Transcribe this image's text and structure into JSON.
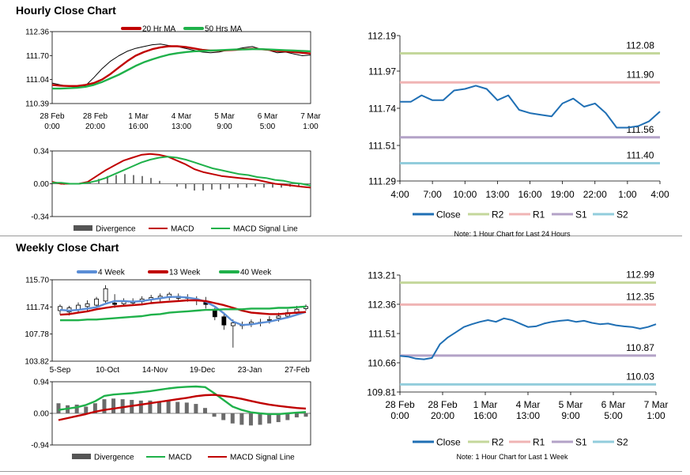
{
  "hourly": {
    "title": "Hourly Close Chart",
    "price_panel": {
      "type": "line",
      "legend": [
        {
          "name": "20 Hr MA",
          "color": "#c00000"
        },
        {
          "name": "50 Hrs MA",
          "color": "#1fb14a"
        }
      ],
      "y_ticks": [
        "112.36",
        "111.70",
        "111.04",
        "110.39"
      ],
      "ylim": [
        110.39,
        112.36
      ],
      "x_ticks": [
        [
          "28 Feb",
          "0:00"
        ],
        [
          "28 Feb",
          "20:00"
        ],
        [
          "1 Mar",
          "16:00"
        ],
        [
          "4 Mar",
          "13:00"
        ],
        [
          "5 Mar",
          "9:00"
        ],
        [
          "6 Mar",
          "5:00"
        ],
        [
          "7 Mar",
          "1:00"
        ]
      ],
      "series": [
        {
          "name": "Price",
          "color": "#000000",
          "values": [
            110.95,
            110.9,
            110.86,
            110.84,
            110.88,
            111.1,
            111.35,
            111.55,
            111.7,
            111.82,
            111.9,
            111.95,
            112.0,
            112.02,
            111.98,
            111.95,
            111.9,
            111.85,
            111.8,
            111.78,
            111.8,
            111.85,
            111.88,
            111.92,
            111.95,
            111.88,
            111.85,
            111.78,
            111.8,
            111.75,
            111.7,
            111.72
          ]
        },
        {
          "name": "20 Hr MA",
          "color": "#c00000",
          "values": [
            110.9,
            110.88,
            110.87,
            110.87,
            110.9,
            110.95,
            111.05,
            111.2,
            111.38,
            111.55,
            111.7,
            111.8,
            111.88,
            111.93,
            111.96,
            111.96,
            111.94,
            111.9,
            111.86,
            111.84,
            111.84,
            111.85,
            111.86,
            111.88,
            111.89,
            111.88,
            111.86,
            111.83,
            111.82,
            111.8,
            111.78,
            111.76
          ]
        },
        {
          "name": "50 Hrs MA",
          "color": "#1fb14a",
          "values": [
            110.8,
            110.8,
            110.81,
            110.82,
            110.85,
            110.9,
            110.98,
            111.08,
            111.18,
            111.3,
            111.42,
            111.52,
            111.6,
            111.67,
            111.73,
            111.77,
            111.8,
            111.82,
            111.83,
            111.84,
            111.85,
            111.86,
            111.87,
            111.87,
            111.88,
            111.88,
            111.87,
            111.86,
            111.85,
            111.84,
            111.83,
            111.82
          ]
        }
      ]
    },
    "macd_panel": {
      "type": "line",
      "y_ticks": [
        "0.34",
        "0.00",
        "-0.34"
      ],
      "ylim": [
        -0.34,
        0.34
      ],
      "legend": [
        {
          "name": "Divergence",
          "color": "#555555"
        },
        {
          "name": "MACD",
          "color": "#c00000"
        },
        {
          "name": "MACD Signal Line",
          "color": "#1fb14a"
        }
      ],
      "series": [
        {
          "name": "MACD",
          "color": "#c00000",
          "values": [
            0.02,
            0.0,
            0.0,
            0.0,
            0.02,
            0.08,
            0.14,
            0.19,
            0.24,
            0.27,
            0.3,
            0.31,
            0.3,
            0.28,
            0.24,
            0.2,
            0.15,
            0.12,
            0.1,
            0.08,
            0.07,
            0.06,
            0.05,
            0.04,
            0.02,
            0.0,
            -0.01,
            -0.02,
            -0.03,
            -0.04
          ]
        },
        {
          "name": "MACD Signal Line",
          "color": "#1fb14a",
          "values": [
            0.01,
            0.01,
            0.0,
            0.0,
            0.01,
            0.03,
            0.06,
            0.1,
            0.14,
            0.18,
            0.22,
            0.25,
            0.27,
            0.28,
            0.27,
            0.25,
            0.22,
            0.19,
            0.16,
            0.14,
            0.12,
            0.1,
            0.09,
            0.07,
            0.06,
            0.04,
            0.03,
            0.01,
            0.0,
            -0.02
          ]
        }
      ],
      "divergence": [
        0.01,
        -0.01,
        0.0,
        0.0,
        0.01,
        0.05,
        0.08,
        0.09,
        0.1,
        0.09,
        0.08,
        0.06,
        0.03,
        0.0,
        -0.03,
        -0.05,
        -0.07,
        -0.07,
        -0.06,
        -0.06,
        -0.05,
        -0.04,
        -0.04,
        -0.03,
        -0.04,
        -0.04,
        -0.04,
        -0.03,
        -0.03,
        -0.02
      ]
    },
    "pivot_panel": {
      "type": "line",
      "y_ticks": [
        "112.19",
        "111.97",
        "111.74",
        "111.51",
        "111.29"
      ],
      "ylim": [
        111.29,
        112.19
      ],
      "x_ticks": [
        "4:00",
        "7:00",
        "10:00",
        "13:00",
        "16:00",
        "19:00",
        "22:00",
        "1:00",
        "4:00"
      ],
      "levels": [
        {
          "name": "R2",
          "value": 112.08,
          "label": "112.08",
          "color": "#c4d79b"
        },
        {
          "name": "R1",
          "value": 111.9,
          "label": "111.90",
          "color": "#f0b4b4"
        },
        {
          "name": "S1",
          "value": 111.56,
          "label": "111.56",
          "color": "#b3a2c7"
        },
        {
          "name": "S2",
          "value": 111.4,
          "label": "111.40",
          "color": "#92cddc"
        }
      ],
      "close": {
        "name": "Close",
        "color": "#1f6fb4",
        "x_hours": [
          0,
          1,
          2,
          3,
          4,
          5,
          6,
          7,
          8,
          9,
          10,
          11,
          12,
          13,
          14,
          15,
          16,
          17,
          18,
          19,
          20,
          21,
          22,
          23,
          24
        ],
        "values": [
          111.78,
          111.78,
          111.82,
          111.79,
          111.79,
          111.85,
          111.86,
          111.88,
          111.86,
          111.79,
          111.82,
          111.73,
          111.71,
          111.7,
          111.69,
          111.77,
          111.8,
          111.75,
          111.77,
          111.71,
          111.62,
          111.62,
          111.63,
          111.66,
          111.72
        ]
      },
      "legend": [
        "Close",
        "R2",
        "R1",
        "S1",
        "S2"
      ],
      "note": "Note: 1 Hour Chart for Last 24 Hours"
    }
  },
  "weekly": {
    "title": "Weekly Close Chart",
    "price_panel": {
      "type": "line",
      "legend": [
        {
          "name": "4 Week",
          "color": "#5b8ed6"
        },
        {
          "name": "13 Week",
          "color": "#c00000"
        },
        {
          "name": "40 Week",
          "color": "#1fb14a"
        }
      ],
      "y_ticks": [
        "115.70",
        "111.74",
        "107.78",
        "103.82"
      ],
      "ylim": [
        103.82,
        115.7
      ],
      "x_ticks": [
        "5-Sep",
        "10-Oct",
        "14-Nov",
        "19-Dec",
        "23-Jan",
        "27-Feb"
      ],
      "candles": [
        [
          111.2,
          111.8,
          110.6,
          112.1
        ],
        [
          111.0,
          111.6,
          110.5,
          111.9
        ],
        [
          111.3,
          112.0,
          110.9,
          112.4
        ],
        [
          111.8,
          112.2,
          111.1,
          112.7
        ],
        [
          112.0,
          112.9,
          111.6,
          113.2
        ],
        [
          112.6,
          114.4,
          112.3,
          114.9
        ],
        [
          112.3,
          112.1,
          111.6,
          113.6
        ],
        [
          112.2,
          112.5,
          111.9,
          113.0
        ],
        [
          112.3,
          112.6,
          111.9,
          113.0
        ],
        [
          112.5,
          112.9,
          112.0,
          113.3
        ],
        [
          112.8,
          113.1,
          112.2,
          113.5
        ],
        [
          113.0,
          113.3,
          112.5,
          113.7
        ],
        [
          113.1,
          113.6,
          112.7,
          113.9
        ],
        [
          113.0,
          113.3,
          112.6,
          113.7
        ],
        [
          113.1,
          113.0,
          112.5,
          113.6
        ],
        [
          112.9,
          112.7,
          112.0,
          113.3
        ],
        [
          112.4,
          112.1,
          111.5,
          113.2
        ],
        [
          111.4,
          110.3,
          109.8,
          111.6
        ],
        [
          110.3,
          109.1,
          108.4,
          110.7
        ],
        [
          109.0,
          109.4,
          105.8,
          109.9
        ],
        [
          109.2,
          109.0,
          108.5,
          109.6
        ],
        [
          109.3,
          109.5,
          108.8,
          109.9
        ],
        [
          109.5,
          109.4,
          108.9,
          110.0
        ],
        [
          109.8,
          109.9,
          109.3,
          110.4
        ],
        [
          110.1,
          110.4,
          109.6,
          110.9
        ],
        [
          110.4,
          110.9,
          110.1,
          111.4
        ],
        [
          110.8,
          111.4,
          110.6,
          111.9
        ],
        [
          111.5,
          111.8,
          111.2,
          112.1
        ]
      ],
      "series": [
        {
          "name": "4 Week",
          "color": "#5b8ed6",
          "values": [
            111.3,
            111.2,
            111.3,
            111.5,
            111.7,
            112.2,
            112.6,
            112.6,
            112.5,
            112.6,
            112.8,
            113.0,
            113.2,
            113.2,
            113.1,
            112.9,
            112.5,
            111.8,
            110.8,
            109.6,
            109.1,
            109.2,
            109.4,
            109.6,
            109.9,
            110.2,
            110.6,
            111.0
          ]
        },
        {
          "name": "13 Week",
          "color": "#c00000",
          "values": [
            110.6,
            110.7,
            110.9,
            111.1,
            111.4,
            111.6,
            111.8,
            111.9,
            112.0,
            112.1,
            112.3,
            112.4,
            112.5,
            112.6,
            112.7,
            112.7,
            112.6,
            112.3,
            112.0,
            111.6,
            111.2,
            110.9,
            110.8,
            110.7,
            110.7,
            110.8,
            110.9,
            111.0
          ]
        },
        {
          "name": "40 Week",
          "color": "#1fb14a",
          "values": [
            109.8,
            109.8,
            109.8,
            109.9,
            109.9,
            110.0,
            110.1,
            110.2,
            110.3,
            110.4,
            110.6,
            110.7,
            110.9,
            111.0,
            111.1,
            111.2,
            111.3,
            111.3,
            111.4,
            111.4,
            111.4,
            111.5,
            111.5,
            111.5,
            111.6,
            111.6,
            111.7,
            111.8
          ]
        }
      ]
    },
    "macd_panel": {
      "type": "bar",
      "y_ticks": [
        "0.94",
        "0.00",
        "-0.94"
      ],
      "ylim": [
        -0.94,
        0.94
      ],
      "legend": [
        {
          "name": "Divergence",
          "color": "#555555"
        },
        {
          "name": "MACD",
          "color": "#1fb14a"
        },
        {
          "name": "MACD Signal Line",
          "color": "#c00000"
        }
      ],
      "divergence": [
        0.3,
        0.24,
        0.26,
        0.2,
        0.3,
        0.42,
        0.44,
        0.42,
        0.4,
        0.38,
        0.38,
        0.36,
        0.36,
        0.34,
        0.32,
        0.28,
        0.16,
        -0.1,
        -0.2,
        -0.3,
        -0.34,
        -0.36,
        -0.34,
        -0.3,
        -0.26,
        -0.2,
        -0.12,
        -0.1
      ],
      "series": [
        {
          "name": "MACD",
          "color": "#1fb14a",
          "values": [
            0.1,
            0.14,
            0.18,
            0.25,
            0.36,
            0.52,
            0.56,
            0.58,
            0.6,
            0.63,
            0.66,
            0.7,
            0.74,
            0.77,
            0.79,
            0.8,
            0.78,
            0.6,
            0.4,
            0.2,
            0.1,
            0.03,
            0.0,
            -0.02,
            -0.02,
            0.0,
            0.02,
            0.04
          ]
        },
        {
          "name": "MACD Signal Line",
          "color": "#c00000",
          "values": [
            -0.2,
            -0.14,
            -0.08,
            -0.02,
            0.05,
            0.1,
            0.14,
            0.18,
            0.22,
            0.26,
            0.3,
            0.34,
            0.38,
            0.42,
            0.46,
            0.51,
            0.54,
            0.55,
            0.52,
            0.48,
            0.43,
            0.37,
            0.31,
            0.26,
            0.22,
            0.19,
            0.16,
            0.14
          ]
        }
      ]
    },
    "pivot_panel": {
      "type": "line",
      "y_ticks": [
        "113.21",
        "112.36",
        "111.51",
        "110.66",
        "109.81"
      ],
      "ylim": [
        109.81,
        113.21
      ],
      "x_ticks": [
        [
          "28 Feb",
          "0:00"
        ],
        [
          "28 Feb",
          "20:00"
        ],
        [
          "1 Mar",
          "16:00"
        ],
        [
          "4 Mar",
          "13:00"
        ],
        [
          "5 Mar",
          "9:00"
        ],
        [
          "6 Mar",
          "5:00"
        ],
        [
          "7 Mar",
          "1:00"
        ]
      ],
      "levels": [
        {
          "name": "R2",
          "value": 112.99,
          "label": "112.99",
          "color": "#c4d79b"
        },
        {
          "name": "R1",
          "value": 112.35,
          "label": "112.35",
          "color": "#f0b4b4"
        },
        {
          "name": "S1",
          "value": 110.87,
          "label": "110.87",
          "color": "#b3a2c7"
        },
        {
          "name": "S2",
          "value": 110.03,
          "label": "110.03",
          "color": "#92cddc"
        }
      ],
      "close": {
        "name": "Close",
        "color": "#1f6fb4",
        "values": [
          110.86,
          110.84,
          110.78,
          110.76,
          110.8,
          111.2,
          111.4,
          111.55,
          111.7,
          111.78,
          111.85,
          111.9,
          111.85,
          111.95,
          111.9,
          111.8,
          111.7,
          111.72,
          111.8,
          111.85,
          111.88,
          111.9,
          111.85,
          111.88,
          111.82,
          111.78,
          111.8,
          111.75,
          111.72,
          111.7,
          111.65,
          111.7,
          111.78
        ]
      },
      "legend": [
        "Close",
        "R2",
        "R1",
        "S1",
        "S2"
      ],
      "note": "Note: 1 Hour Chart for Last 1 Week"
    }
  }
}
